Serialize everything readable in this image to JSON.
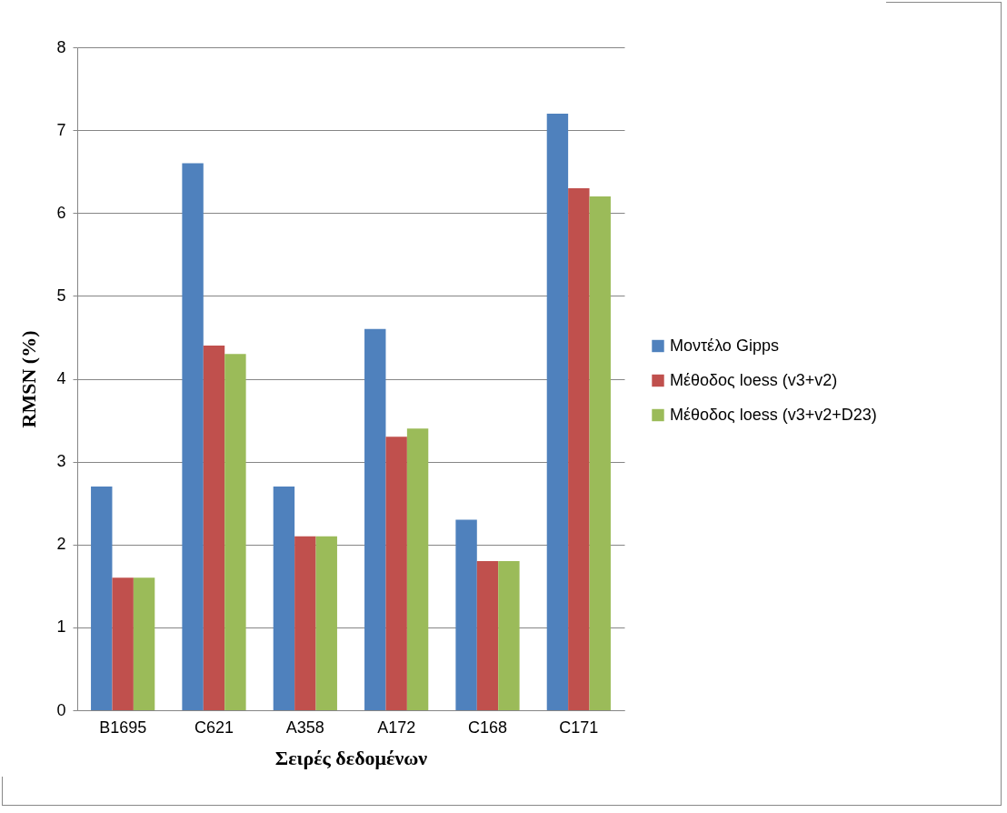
{
  "chart_data": {
    "type": "bar",
    "xlabel": "Σειρές δεδομένων",
    "ylabel": "RMSN (%)",
    "categories": [
      "B1695",
      "C621",
      "A358",
      "A172",
      "C168",
      "C171"
    ],
    "series": [
      {
        "name": "Μοντέλο Gipps",
        "color": "#4f81bd",
        "values": [
          2.7,
          6.6,
          2.7,
          4.6,
          2.3,
          7.2
        ]
      },
      {
        "name": "Μέθοδος loess (v3+v2)",
        "color": "#c0504d",
        "values": [
          1.6,
          4.4,
          2.1,
          3.3,
          1.8,
          6.3
        ]
      },
      {
        "name": "Μέθοδος loess (v3+v2+D23)",
        "color": "#9bbb59",
        "values": [
          1.6,
          4.3,
          2.1,
          3.4,
          1.8,
          6.2
        ]
      }
    ],
    "ylim": [
      0,
      8
    ],
    "yticks": [
      0,
      1,
      2,
      3,
      4,
      5,
      6,
      7,
      8
    ],
    "grid": "y",
    "legend": "right"
  }
}
